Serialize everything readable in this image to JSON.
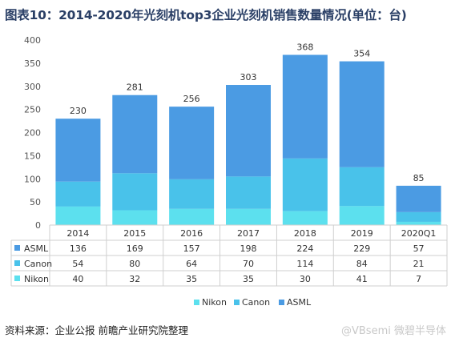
{
  "title": "图表10：2014-2020年光刻机top3企业光刻机销售数量情况(单位：台)",
  "source": "资料来源：企业公报 前瞻产业研究院整理",
  "watermark": "@VBsemi 微碧半导体",
  "chart_data": {
    "type": "bar",
    "stacked": true,
    "categories": [
      "2014",
      "2015",
      "2016",
      "2017",
      "2018",
      "2019",
      "2020Q1"
    ],
    "series": [
      {
        "name": "Nikon",
        "values": [
          40,
          32,
          35,
          35,
          30,
          41,
          7
        ],
        "color": "#5ce0ee"
      },
      {
        "name": "Canon",
        "values": [
          54,
          80,
          64,
          70,
          114,
          84,
          21
        ],
        "color": "#49c2ea"
      },
      {
        "name": "ASML",
        "values": [
          136,
          169,
          157,
          198,
          224,
          229,
          57
        ],
        "color": "#4b9be3"
      }
    ],
    "totals": [
      230,
      281,
      256,
      303,
      368,
      354,
      85
    ],
    "table_order": [
      "ASML",
      "Canon",
      "Nikon"
    ],
    "legend_order": [
      "Nikon",
      "Canon",
      "ASML"
    ],
    "yticks": [
      0,
      50,
      100,
      150,
      200,
      250,
      300,
      350,
      400
    ],
    "ylim": [
      0,
      400
    ],
    "grid": false,
    "data_table": true,
    "legend": "bottom"
  }
}
